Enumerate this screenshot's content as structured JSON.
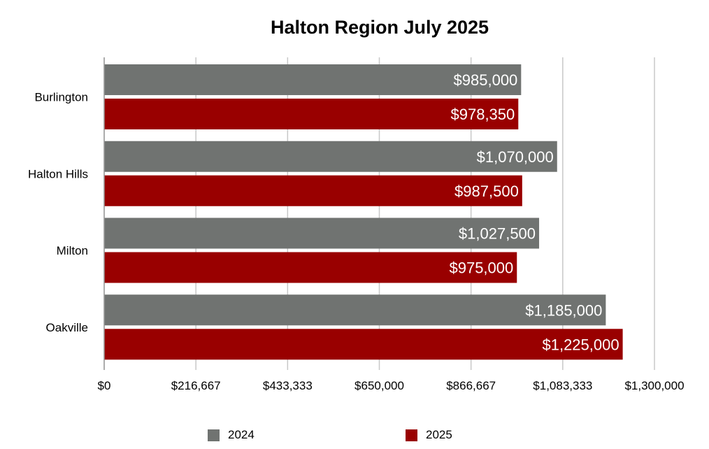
{
  "chart_data": {
    "type": "bar",
    "orientation": "horizontal",
    "title": "Halton Region July 2025",
    "xlabel": "",
    "ylabel": "",
    "categories": [
      "Burlington",
      "Halton Hills",
      "Milton",
      "Oakville"
    ],
    "series": [
      {
        "name": "2024",
        "color": "#707371",
        "values": [
          985000,
          1070000,
          1027500,
          1185000
        ],
        "labels": [
          "$985,000",
          "$1,070,000",
          "$1,027,500",
          "$1,185,000"
        ]
      },
      {
        "name": "2025",
        "color": "#990000",
        "values": [
          978350,
          987500,
          975000,
          1225000
        ],
        "labels": [
          "$978,350",
          "$987,500",
          "$975,000",
          "$1,225,000"
        ]
      }
    ],
    "xlim": [
      0,
      1300000
    ],
    "xticks": [
      0,
      216667,
      433333,
      650000,
      866667,
      1083333,
      1300000
    ],
    "xtick_labels": [
      "$0",
      "$216,667",
      "$433,333",
      "$650,000",
      "$866,667",
      "$1,083,333",
      "$1,300,000"
    ],
    "grid": true,
    "legend_position": "bottom"
  }
}
